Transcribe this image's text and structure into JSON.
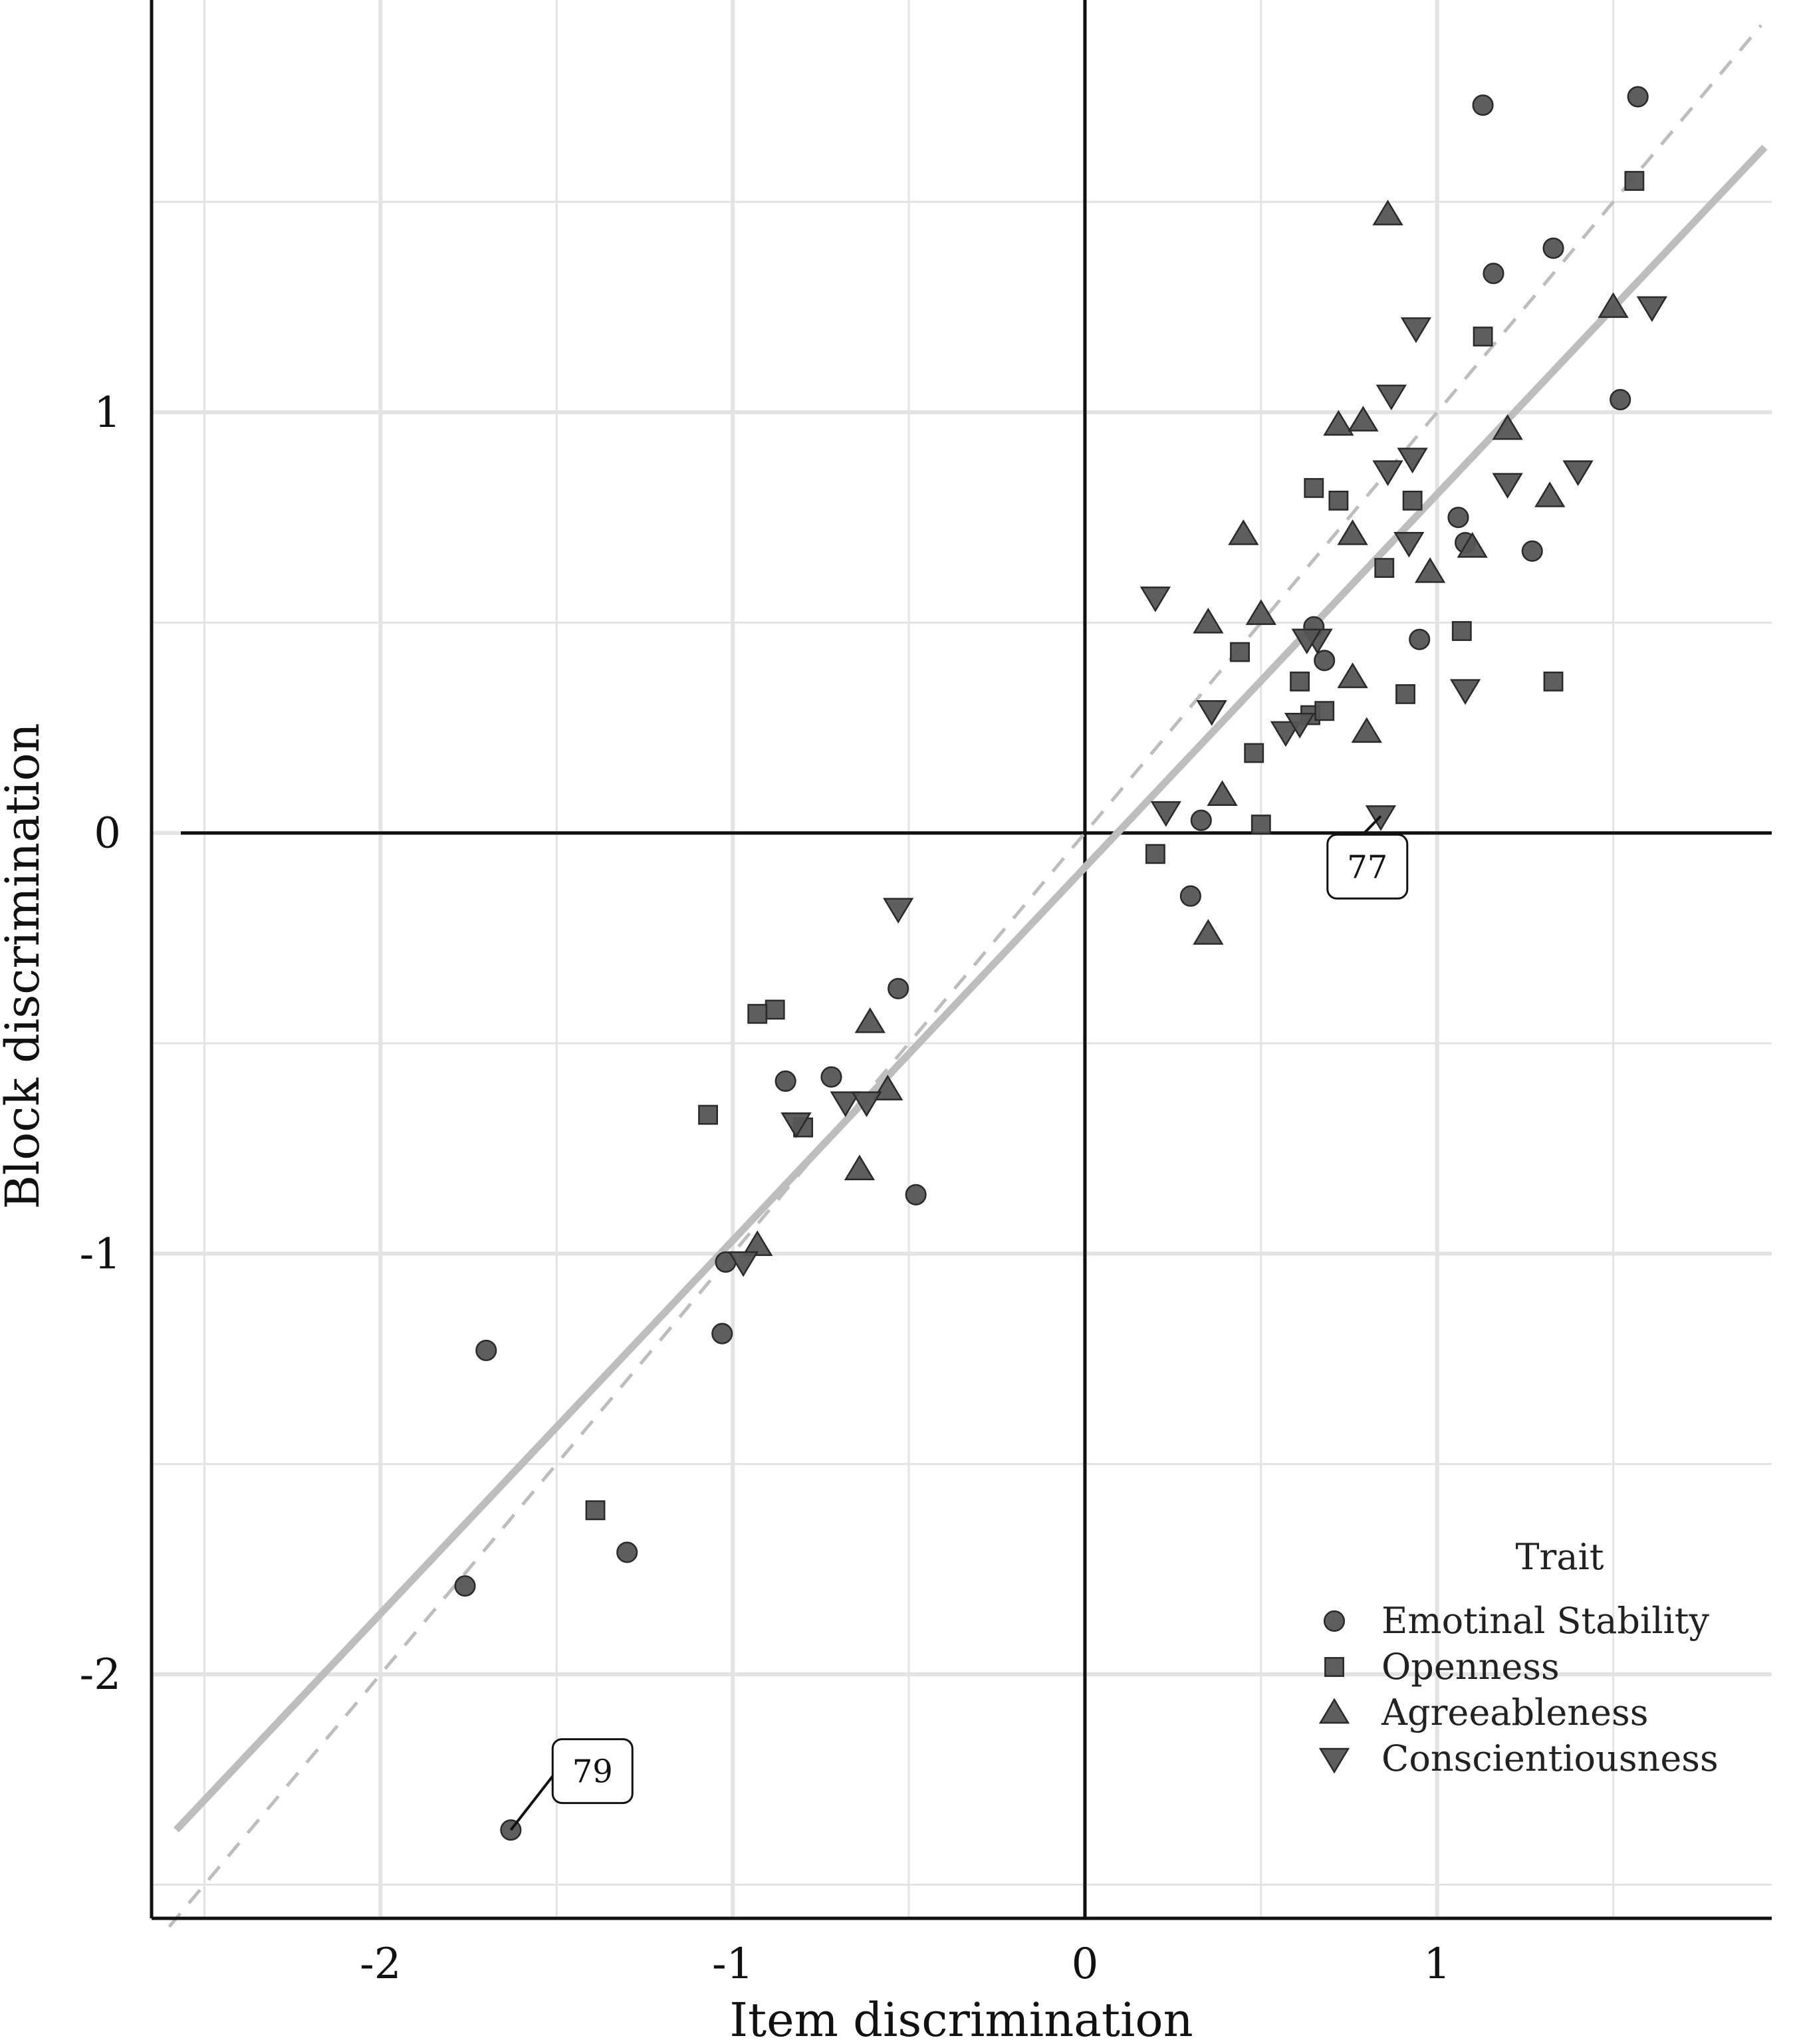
{
  "chart_data": {
    "type": "scatter",
    "title": "",
    "xlabel": "Item discrimination",
    "ylabel": "Block discrimination",
    "xlim": [
      -2.65,
      1.95
    ],
    "ylim": [
      -2.58,
      1.98
    ],
    "x_ticks": [
      -2,
      -1,
      0,
      1
    ],
    "y_ticks": [
      -2,
      -1,
      0,
      1
    ],
    "grid": true,
    "legend": {
      "title": "Trait",
      "placement": "bottom-right"
    },
    "reference_lines": [
      {
        "name": "identity",
        "style": "dashed",
        "color": "#bdbdbd",
        "x": [
          -2.6,
          1.92
        ],
        "y": [
          -2.6,
          1.92
        ]
      },
      {
        "name": "fit",
        "style": "solid",
        "color": "#bdbdbd",
        "x": [
          -2.58,
          1.93
        ],
        "y": [
          -2.37,
          1.63
        ]
      }
    ],
    "series": [
      {
        "name": "Emotinal Stability",
        "marker": "circle",
        "points": [
          {
            "x": 1.13,
            "y": 1.73
          },
          {
            "x": 1.57,
            "y": 1.75
          },
          {
            "x": 1.33,
            "y": 1.39
          },
          {
            "x": 1.16,
            "y": 1.33
          },
          {
            "x": 1.52,
            "y": 1.03
          },
          {
            "x": 1.06,
            "y": 0.75
          },
          {
            "x": 1.08,
            "y": 0.69
          },
          {
            "x": 1.27,
            "y": 0.67
          },
          {
            "x": 0.95,
            "y": 0.46
          },
          {
            "x": 0.65,
            "y": 0.49
          },
          {
            "x": 0.68,
            "y": 0.41
          },
          {
            "x": 0.33,
            "y": 0.03
          },
          {
            "x": 0.3,
            "y": -0.15
          },
          {
            "x": -0.53,
            "y": -0.37
          },
          {
            "x": -0.85,
            "y": -0.59
          },
          {
            "x": -0.72,
            "y": -0.58
          },
          {
            "x": -0.48,
            "y": -0.86
          },
          {
            "x": -1.02,
            "y": -1.02
          },
          {
            "x": -1.03,
            "y": -1.19
          },
          {
            "x": -1.7,
            "y": -1.23
          },
          {
            "x": -1.76,
            "y": -1.79
          },
          {
            "x": -1.3,
            "y": -1.71
          },
          {
            "x": -1.63,
            "y": -2.37
          }
        ]
      },
      {
        "name": "Openness",
        "marker": "square",
        "points": [
          {
            "x": 1.56,
            "y": 1.55
          },
          {
            "x": 1.13,
            "y": 1.18
          },
          {
            "x": 0.65,
            "y": 0.82
          },
          {
            "x": 0.72,
            "y": 0.79
          },
          {
            "x": 0.93,
            "y": 0.79
          },
          {
            "x": 0.85,
            "y": 0.63
          },
          {
            "x": 1.07,
            "y": 0.48
          },
          {
            "x": 0.44,
            "y": 0.43
          },
          {
            "x": 0.61,
            "y": 0.36
          },
          {
            "x": 0.64,
            "y": 0.28
          },
          {
            "x": 0.68,
            "y": 0.29
          },
          {
            "x": 0.91,
            "y": 0.33
          },
          {
            "x": 1.33,
            "y": 0.36
          },
          {
            "x": 0.48,
            "y": 0.19
          },
          {
            "x": 0.5,
            "y": 0.02
          },
          {
            "x": 0.2,
            "y": -0.05
          },
          {
            "x": -0.88,
            "y": -0.42
          },
          {
            "x": -0.93,
            "y": -0.43
          },
          {
            "x": -1.07,
            "y": -0.67
          },
          {
            "x": -0.8,
            "y": -0.7
          },
          {
            "x": -1.39,
            "y": -1.61
          }
        ]
      },
      {
        "name": "Agreeableness",
        "marker": "triangle-up",
        "points": [
          {
            "x": 0.86,
            "y": 1.47
          },
          {
            "x": 1.5,
            "y": 1.25
          },
          {
            "x": 0.72,
            "y": 0.97
          },
          {
            "x": 0.79,
            "y": 0.98
          },
          {
            "x": 1.2,
            "y": 0.96
          },
          {
            "x": 1.32,
            "y": 0.8
          },
          {
            "x": 0.45,
            "y": 0.71
          },
          {
            "x": 0.76,
            "y": 0.71
          },
          {
            "x": 0.98,
            "y": 0.62
          },
          {
            "x": 1.1,
            "y": 0.68
          },
          {
            "x": 0.35,
            "y": 0.5
          },
          {
            "x": 0.5,
            "y": 0.52
          },
          {
            "x": 0.76,
            "y": 0.37
          },
          {
            "x": 0.8,
            "y": 0.24
          },
          {
            "x": 0.39,
            "y": 0.09
          },
          {
            "x": 0.35,
            "y": -0.24
          },
          {
            "x": -0.61,
            "y": -0.45
          },
          {
            "x": -0.56,
            "y": -0.61
          },
          {
            "x": -0.64,
            "y": -0.8
          },
          {
            "x": -0.93,
            "y": -0.98
          }
        ]
      },
      {
        "name": "Conscientiousness",
        "marker": "triangle-down",
        "points": [
          {
            "x": 0.94,
            "y": 1.2
          },
          {
            "x": 1.61,
            "y": 1.25
          },
          {
            "x": 0.87,
            "y": 1.04
          },
          {
            "x": 0.86,
            "y": 0.86
          },
          {
            "x": 0.93,
            "y": 0.89
          },
          {
            "x": 1.2,
            "y": 0.83
          },
          {
            "x": 1.4,
            "y": 0.86
          },
          {
            "x": 0.92,
            "y": 0.69
          },
          {
            "x": 0.2,
            "y": 0.56
          },
          {
            "x": 0.66,
            "y": 0.46
          },
          {
            "x": 0.63,
            "y": 0.46
          },
          {
            "x": 1.08,
            "y": 0.34
          },
          {
            "x": 0.36,
            "y": 0.29
          },
          {
            "x": 0.57,
            "y": 0.24
          },
          {
            "x": 0.61,
            "y": 0.26
          },
          {
            "x": 0.23,
            "y": 0.05
          },
          {
            "x": 0.84,
            "y": 0.04
          },
          {
            "x": -0.53,
            "y": -0.18
          },
          {
            "x": -0.68,
            "y": -0.64
          },
          {
            "x": -0.82,
            "y": -0.69
          },
          {
            "x": -0.62,
            "y": -0.64
          },
          {
            "x": -0.97,
            "y": -1.02
          }
        ]
      }
    ],
    "annotations": [
      {
        "text": "77",
        "x": 0.84,
        "y": 0.04,
        "label_x": 0.7,
        "label_y": -0.08
      },
      {
        "text": "79",
        "x": -1.63,
        "y": -2.37,
        "label_x": -1.5,
        "label_y": -2.23
      }
    ]
  }
}
